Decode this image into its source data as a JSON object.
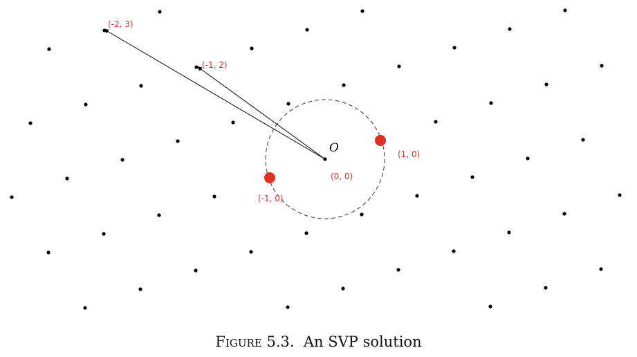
{
  "labels": {
    "origin": "O",
    "p00": "(0, 0)",
    "p10": "(1, 0)",
    "pm10": "(-1, 0)",
    "pm12": "(-1, 2)",
    "pm23": "(-2, 3)"
  },
  "caption": {
    "prefix": "Figure",
    "number": "5.3.",
    "text": "An SVP solution"
  },
  "colors": {
    "highlight": "#e03020",
    "points": "#000000"
  }
}
